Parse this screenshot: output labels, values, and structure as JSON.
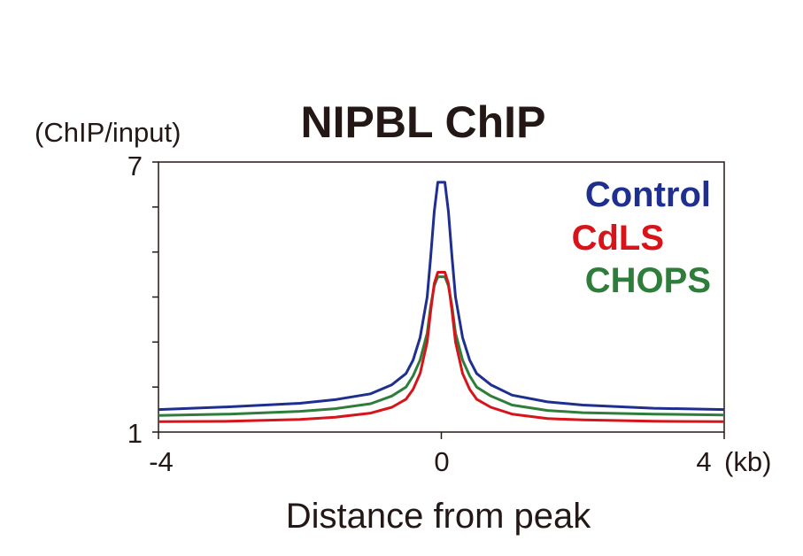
{
  "chart_data": {
    "type": "line",
    "title": "NIPBL ChIP",
    "ylabel": "(ChIP/input)",
    "xlabel": "Distance from peak",
    "xunit": "(kb)",
    "xlim": [
      -4,
      4
    ],
    "ylim": [
      1,
      7
    ],
    "xticks": [
      "-4",
      "0",
      "4"
    ],
    "yticks": [
      "1",
      "7"
    ],
    "legend_position": "top-right",
    "grid": false,
    "x": [
      -4,
      -3,
      -2,
      -1.5,
      -1,
      -0.7,
      -0.5,
      -0.4,
      -0.3,
      -0.2,
      -0.15,
      -0.1,
      -0.05,
      0,
      0.05,
      0.1,
      0.15,
      0.2,
      0.3,
      0.4,
      0.5,
      0.7,
      1,
      1.5,
      2,
      3,
      4
    ],
    "series": [
      {
        "name": "Control",
        "color": "#1f2f8f",
        "values": [
          1.5,
          1.56,
          1.64,
          1.72,
          1.85,
          2.05,
          2.3,
          2.6,
          3.1,
          4.0,
          4.9,
          5.9,
          6.55,
          6.55,
          6.55,
          5.9,
          4.9,
          4.0,
          3.1,
          2.6,
          2.3,
          2.05,
          1.82,
          1.67,
          1.6,
          1.53,
          1.5
        ]
      },
      {
        "name": "CdLS",
        "color": "#d7141a",
        "values": [
          1.23,
          1.24,
          1.28,
          1.33,
          1.42,
          1.55,
          1.73,
          1.95,
          2.3,
          3.0,
          3.7,
          4.3,
          4.55,
          4.55,
          4.55,
          4.3,
          3.7,
          3.0,
          2.3,
          1.95,
          1.73,
          1.55,
          1.4,
          1.3,
          1.27,
          1.24,
          1.23
        ]
      },
      {
        "name": "CHOPS",
        "color": "#2e7d3a",
        "values": [
          1.37,
          1.4,
          1.46,
          1.52,
          1.63,
          1.8,
          2.0,
          2.25,
          2.6,
          3.2,
          3.8,
          4.25,
          4.45,
          4.45,
          4.45,
          4.25,
          3.8,
          3.2,
          2.6,
          2.25,
          2.0,
          1.8,
          1.6,
          1.48,
          1.43,
          1.4,
          1.38
        ]
      }
    ]
  }
}
